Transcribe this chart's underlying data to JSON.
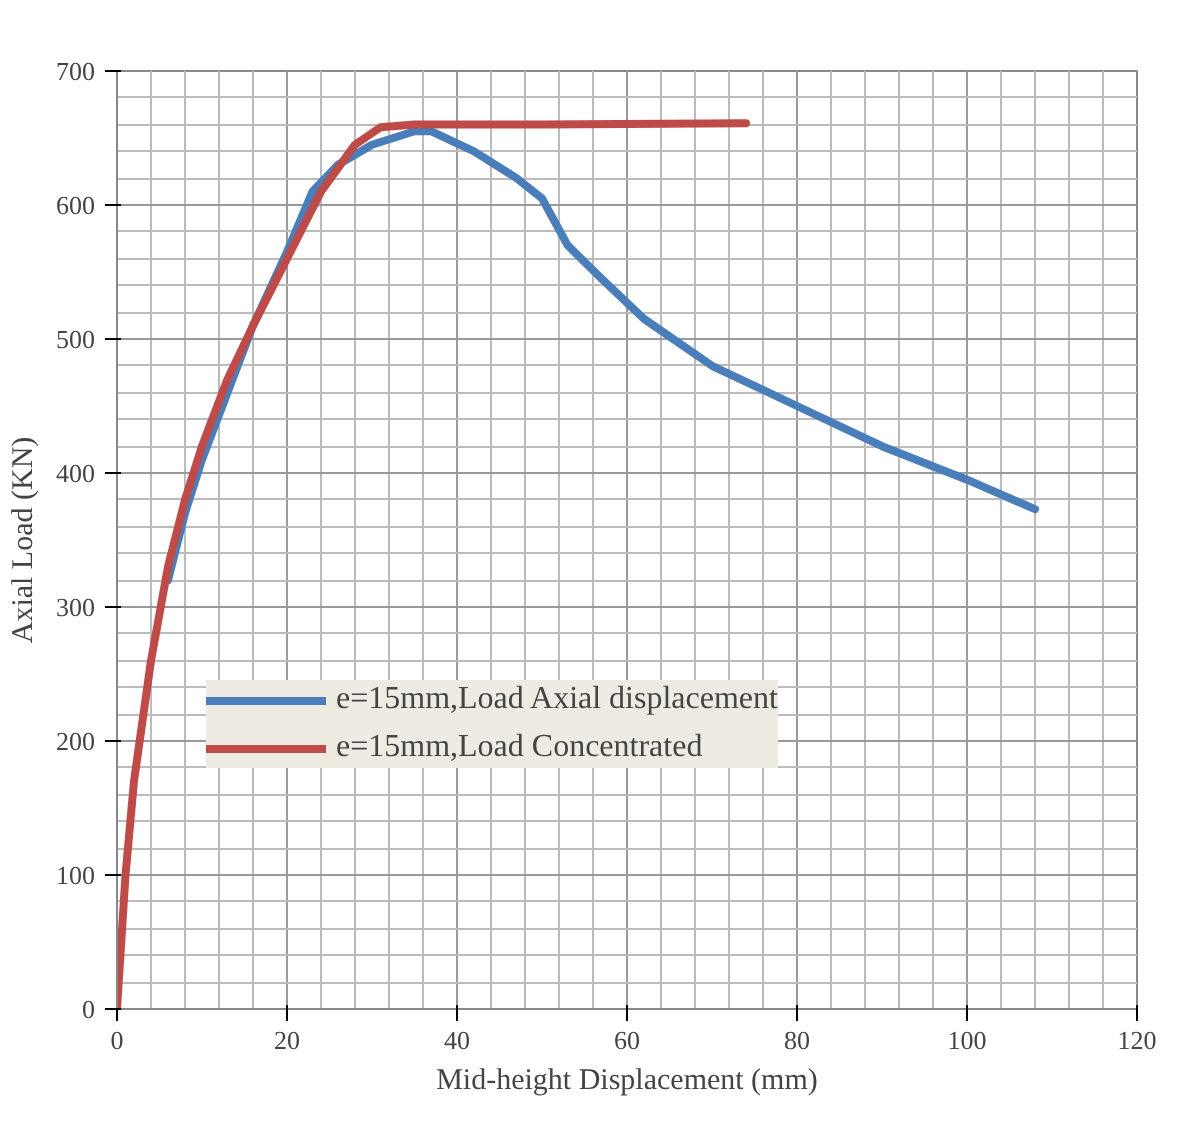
{
  "chart_data": {
    "type": "line",
    "xlabel": "Mid-height Displacement (mm)",
    "ylabel": "Axial Load (KN)",
    "xlim": [
      0,
      120
    ],
    "ylim": [
      0,
      700
    ],
    "xticks": [
      0,
      20,
      40,
      60,
      80,
      100,
      120
    ],
    "yticks": [
      0,
      100,
      200,
      300,
      400,
      500,
      600,
      700
    ],
    "grid": true,
    "legend": "left",
    "line_style": "solid",
    "marker": "none",
    "series": [
      {
        "name": "e=15mm,Load Axial displacement",
        "color": "#4a7ebb",
        "x": [
          6,
          8,
          10,
          13,
          16,
          20,
          23,
          26,
          30,
          35,
          37,
          42,
          47,
          50,
          53,
          57,
          62,
          70,
          80,
          90,
          100,
          108
        ],
        "values": [
          320,
          370,
          410,
          460,
          510,
          565,
          610,
          630,
          645,
          655,
          655,
          640,
          620,
          605,
          570,
          545,
          515,
          480,
          450,
          420,
          395,
          373
        ]
      },
      {
        "name": "e=15mm,Load Concentrated",
        "color": "#be4b48",
        "x": [
          0,
          1,
          2,
          4,
          6,
          8,
          10,
          13,
          16,
          20,
          24,
          28,
          31,
          35,
          50,
          74
        ],
        "values": [
          0,
          100,
          170,
          260,
          330,
          380,
          420,
          470,
          510,
          560,
          610,
          645,
          658,
          660,
          660,
          661
        ]
      }
    ]
  }
}
